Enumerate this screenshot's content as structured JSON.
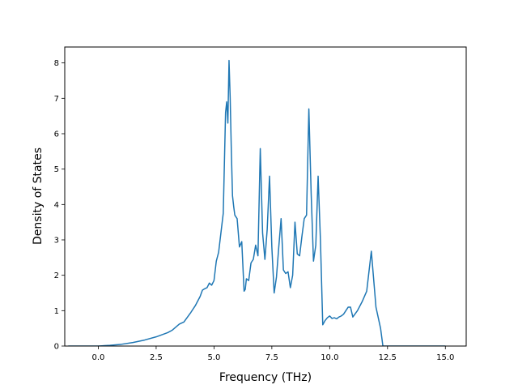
{
  "chart_data": {
    "type": "line",
    "xlabel": "Frequency (THz)",
    "ylabel": "Density of States",
    "xlim": [
      -1.45,
      15.9
    ],
    "ylim": [
      0,
      8.45
    ],
    "grid": false,
    "x_ticks": [
      0.0,
      2.5,
      5.0,
      7.5,
      10.0,
      12.5,
      15.0
    ],
    "x_tick_labels": [
      "0.0",
      "2.5",
      "5.0",
      "7.5",
      "10.0",
      "12.5",
      "15.0"
    ],
    "y_ticks": [
      0,
      1,
      2,
      3,
      4,
      5,
      6,
      7,
      8
    ],
    "y_tick_labels": [
      "0",
      "1",
      "2",
      "3",
      "4",
      "5",
      "6",
      "7",
      "8"
    ],
    "line_color": "#1f77b4",
    "series": [
      {
        "x": [
          -1.3,
          -0.5,
          0.0,
          0.5,
          1.0,
          1.5,
          2.0,
          2.5,
          3.0,
          3.2,
          3.5,
          3.7,
          4.0,
          4.2,
          4.4,
          4.5,
          4.6,
          4.7,
          4.8,
          4.9,
          5.0,
          5.1,
          5.2,
          5.3,
          5.4,
          5.5,
          5.55,
          5.6,
          5.65,
          5.7,
          5.75,
          5.8,
          5.85,
          5.9,
          6.0,
          6.1,
          6.2,
          6.3,
          6.35,
          6.4,
          6.5,
          6.6,
          6.7,
          6.8,
          6.9,
          7.0,
          7.1,
          7.2,
          7.3,
          7.4,
          7.5,
          7.6,
          7.7,
          7.8,
          7.9,
          8.0,
          8.1,
          8.2,
          8.3,
          8.4,
          8.5,
          8.6,
          8.7,
          8.8,
          8.9,
          9.0,
          9.1,
          9.2,
          9.3,
          9.4,
          9.5,
          9.6,
          9.7,
          9.8,
          9.9,
          10.0,
          10.1,
          10.2,
          10.3,
          10.4,
          10.5,
          10.6,
          10.7,
          10.8,
          10.9,
          11.0,
          11.2,
          11.4,
          11.6,
          11.8,
          12.0,
          12.2,
          12.3,
          12.4,
          12.5,
          12.6,
          12.7,
          12.8,
          12.9,
          13.0,
          13.1,
          13.2,
          13.3,
          13.5,
          13.7,
          13.8,
          14.5,
          15.0
        ],
        "y": [
          0.0,
          0.0,
          0.0,
          0.02,
          0.05,
          0.1,
          0.17,
          0.26,
          0.38,
          0.45,
          0.62,
          0.68,
          0.95,
          1.15,
          1.4,
          1.58,
          1.62,
          1.65,
          1.78,
          1.72,
          1.85,
          2.4,
          2.65,
          3.2,
          3.75,
          6.6,
          6.9,
          6.3,
          8.07,
          7.0,
          5.5,
          4.25,
          3.95,
          3.7,
          3.6,
          2.8,
          2.95,
          1.55,
          1.6,
          1.9,
          1.85,
          2.35,
          2.45,
          2.85,
          2.55,
          5.58,
          3.2,
          2.45,
          3.3,
          4.8,
          2.8,
          1.5,
          1.95,
          2.8,
          3.6,
          2.15,
          2.05,
          2.1,
          1.65,
          2.0,
          3.5,
          2.6,
          2.55,
          3.1,
          3.6,
          3.7,
          6.7,
          4.3,
          2.4,
          2.85,
          4.8,
          3.0,
          0.6,
          0.72,
          0.8,
          0.85,
          0.78,
          0.8,
          0.77,
          0.82,
          0.85,
          0.9,
          1.0,
          1.1,
          1.1,
          0.82,
          1.0,
          1.25,
          1.55,
          2.68,
          1.1,
          0.5,
          0.0,
          0.0,
          0.0,
          0.0,
          0.0,
          0.0,
          0.0,
          0.0,
          0.0,
          0.0,
          0.0,
          0.0,
          0.0,
          0.0,
          0.0,
          0.0
        ]
      }
    ]
  }
}
